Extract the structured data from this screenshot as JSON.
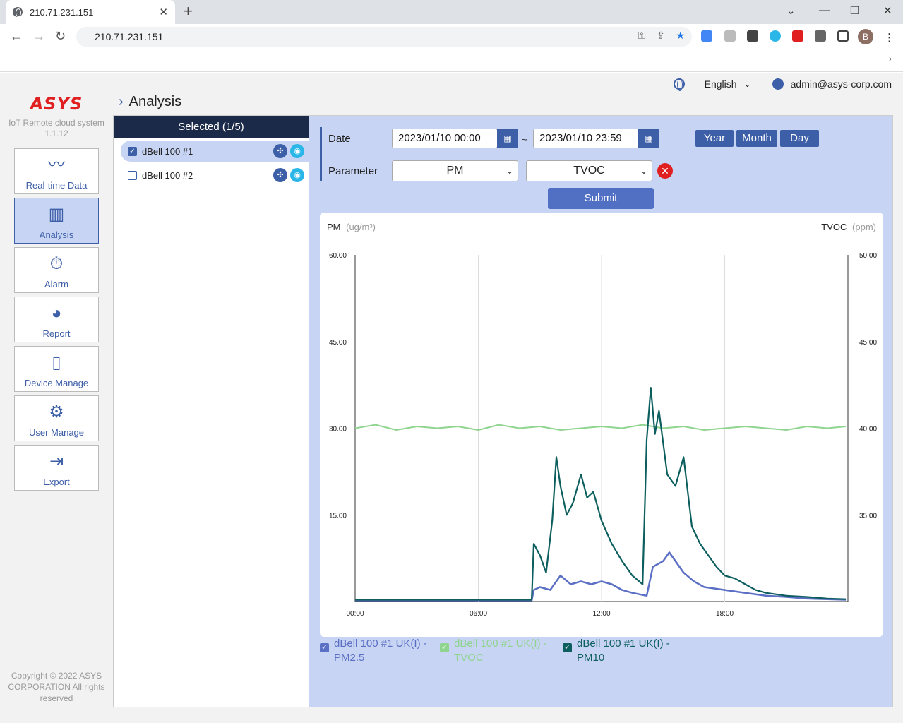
{
  "browser": {
    "tab_title": "210.71.231.151",
    "url": "210.71.231.151",
    "profile_initial": "B"
  },
  "header": {
    "language": "English",
    "user": "admin@asys-corp.com"
  },
  "brand": {
    "logo": "ASYS",
    "subtitle": "IoT Remote cloud system",
    "version": "1.1.12"
  },
  "nav": [
    {
      "label": "Real-time Data",
      "icon": "waveform-icon"
    },
    {
      "label": "Analysis",
      "icon": "bar-chart-icon"
    },
    {
      "label": "Alarm",
      "icon": "alarm-icon"
    },
    {
      "label": "Report",
      "icon": "pie-chart-icon"
    },
    {
      "label": "Device Manage",
      "icon": "device-icon"
    },
    {
      "label": "User Manage",
      "icon": "user-gear-icon"
    },
    {
      "label": "Export",
      "icon": "export-icon"
    }
  ],
  "copyright": "Copyright © 2022 ASYS CORPORATION All rights reserved",
  "page_title": "Analysis",
  "device_list": {
    "header": "Selected (1/5)",
    "devices": [
      {
        "name": "dBell 100 #1",
        "checked": true
      },
      {
        "name": "dBell 100 #2",
        "checked": false
      }
    ]
  },
  "form": {
    "date_label": "Date",
    "start_date": "2023/01/10 00:00",
    "end_date": "2023/01/10 23:59",
    "separator": "~",
    "range_buttons": [
      "Year",
      "Month",
      "Day"
    ],
    "parameter_label": "Parameter",
    "parameter_1": "PM",
    "parameter_2": "TVOC",
    "submit_label": "Submit"
  },
  "chart_data": {
    "type": "line",
    "left_axis_title": "PM",
    "left_axis_unit": "(ug/m³)",
    "right_axis_title": "TVOC",
    "right_axis_unit": "(ppm)",
    "y_left": {
      "min": 0,
      "max": 60,
      "ticks": [
        "60.00",
        "45.00",
        "30.00",
        "15.00"
      ]
    },
    "y_right": {
      "min": 30,
      "max": 50,
      "ticks": [
        "50.00",
        "45.00",
        "40.00",
        "35.00"
      ]
    },
    "x_ticks": [
      "00:00",
      "06:00",
      "12:00",
      "18:00"
    ],
    "x_tick_hours": [
      0,
      6,
      12,
      18
    ],
    "x_range_hours": [
      0,
      24
    ],
    "grid": "vertical",
    "colors": {
      "pm25": "#5b6fc4",
      "tvoc": "#8fd48f",
      "pm10": "#0d5e5e"
    },
    "series": [
      {
        "name": "dBell 100 #1 UK(I) - PM2.5",
        "axis": "left",
        "x_hours": [
          0,
          8.6,
          8.7,
          9.0,
          9.5,
          10.0,
          10.5,
          11.0,
          11.5,
          12.0,
          12.5,
          13.0,
          13.5,
          14.2,
          14.5,
          15.0,
          15.3,
          16.0,
          16.5,
          17.0,
          18.0,
          19.0,
          20.0,
          21.0,
          22.0,
          23.0,
          23.9
        ],
        "values": [
          0.2,
          0.2,
          2.0,
          2.5,
          2.0,
          4.5,
          3.0,
          3.5,
          3.0,
          3.5,
          3.0,
          2.0,
          1.5,
          1.0,
          6.0,
          7.0,
          8.5,
          5.0,
          3.5,
          2.5,
          2.0,
          1.5,
          1.0,
          0.8,
          0.5,
          0.4,
          0.3
        ]
      },
      {
        "name": "dBell 100 #1 UK(I) - TVOC",
        "axis": "right",
        "x_hours": [
          0,
          1,
          2,
          3,
          4,
          5,
          6,
          7,
          8,
          9,
          10,
          11,
          12,
          13,
          14,
          15,
          16,
          17,
          18,
          19,
          20,
          21,
          22,
          23,
          23.9
        ],
        "values": [
          40.0,
          40.2,
          39.9,
          40.1,
          40.0,
          40.1,
          39.9,
          40.2,
          40.0,
          40.1,
          39.9,
          40.0,
          40.1,
          40.0,
          40.2,
          40.0,
          40.1,
          39.9,
          40.0,
          40.1,
          40.0,
          39.9,
          40.1,
          40.0,
          40.1
        ]
      },
      {
        "name": "dBell 100 #1 UK(I) - PM10",
        "axis": "left",
        "x_hours": [
          0,
          8.6,
          8.7,
          9.0,
          9.3,
          9.6,
          9.8,
          10.0,
          10.3,
          10.6,
          11.0,
          11.3,
          11.6,
          12.0,
          12.5,
          13.0,
          13.5,
          14.0,
          14.2,
          14.4,
          14.6,
          14.8,
          15.2,
          15.6,
          16.0,
          16.4,
          16.8,
          17.2,
          17.6,
          18.0,
          18.5,
          19.0,
          19.5,
          20.0,
          21.0,
          22.0,
          23.0,
          23.9
        ],
        "values": [
          0.3,
          0.3,
          10.0,
          8.0,
          5.0,
          14.0,
          25.0,
          20.0,
          15.0,
          17.0,
          22.0,
          18.0,
          19.0,
          14.0,
          10.0,
          7.0,
          4.5,
          3.0,
          28.0,
          37.0,
          29.0,
          33.0,
          22.0,
          20.0,
          25.0,
          13.0,
          10.0,
          8.0,
          6.0,
          4.5,
          4.0,
          3.0,
          2.0,
          1.5,
          1.0,
          0.8,
          0.5,
          0.4
        ]
      }
    ]
  }
}
